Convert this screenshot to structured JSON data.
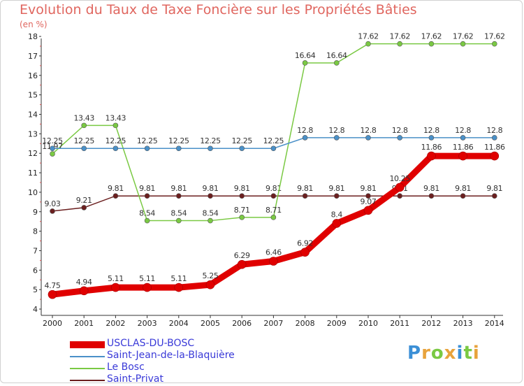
{
  "chart_data": {
    "type": "line",
    "title": "Evolution du Taux de Taxe Foncière sur les Propriétés Bâties",
    "ylabel": "(en %)",
    "xlabel": "",
    "x": [
      "2000",
      "2001",
      "2002",
      "2003",
      "2004",
      "2005",
      "2006",
      "2007",
      "2008",
      "2009",
      "2010",
      "2011",
      "2012",
      "2013",
      "2014"
    ],
    "ylim": [
      4,
      18
    ],
    "yticks": [
      "4",
      "5",
      "6",
      "7",
      "8",
      "9",
      "10",
      "11",
      "12",
      "13",
      "14",
      "15",
      "16",
      "17",
      "18"
    ],
    "grid": false,
    "series": [
      {
        "name": "Saint-Privat",
        "color": "#6b1f1f",
        "values": [
          9.03,
          9.21,
          9.81,
          9.81,
          9.81,
          9.81,
          9.81,
          9.81,
          9.81,
          9.81,
          9.81,
          9.81,
          9.81,
          9.81,
          9.81
        ],
        "labels": [
          "9.03",
          "9.21",
          "9.81",
          "9.81",
          "9.81",
          "9.81",
          "9.81",
          "9.81",
          "9.81",
          "9.81",
          "9.81",
          "9.81",
          "9.81",
          "9.81",
          "9.81"
        ]
      },
      {
        "name": "Le Bosc",
        "color": "#7ac943",
        "values": [
          11.97,
          13.43,
          13.43,
          8.54,
          8.54,
          8.54,
          8.71,
          8.71,
          16.64,
          16.64,
          17.62,
          17.62,
          17.62,
          17.62,
          17.62
        ],
        "labels": [
          "11.97",
          "13.43",
          "13.43",
          "8.54",
          "8.54",
          "8.54",
          "8.71",
          "8.71",
          "16.64",
          "16.64",
          "17.62",
          "17.62",
          "17.62",
          "17.62",
          "17.62"
        ]
      },
      {
        "name": "Saint-Jean-de-la-Blaquière",
        "color": "#4a90c8",
        "values": [
          12.25,
          12.25,
          12.25,
          12.25,
          12.25,
          12.25,
          12.25,
          12.25,
          12.8,
          12.8,
          12.8,
          12.8,
          12.8,
          12.8,
          12.8
        ],
        "labels": [
          "12.25",
          "12.25",
          "12.25",
          "12.25",
          "12.25",
          "12.25",
          "12.25",
          "12.25",
          "12.8",
          "12.8",
          "12.8",
          "12.8",
          "12.8",
          "12.8",
          "12.8"
        ]
      },
      {
        "name": "USCLAS-DU-BOSC",
        "color": "#e00000",
        "values": [
          4.75,
          4.94,
          5.11,
          5.11,
          5.11,
          5.25,
          6.29,
          6.46,
          6.92,
          8.4,
          9.07,
          10.25,
          11.86,
          11.86,
          11.86
        ],
        "labels": [
          "4.75",
          "4.94",
          "5.11",
          "5.11",
          "5.11",
          "5.25",
          "6.29",
          "6.46",
          "6.92",
          "8.4",
          "9.07",
          "10.25",
          "11.86",
          "11.86",
          "11.86"
        ]
      }
    ],
    "legend": {
      "position": "bottom-left",
      "items": [
        {
          "name": "USCLAS-DU-BOSC",
          "color": "#e00000"
        },
        {
          "name": "Saint-Jean-de-la-Blaquière",
          "color": "#4a90c8"
        },
        {
          "name": "Le Bosc",
          "color": "#7ac943"
        },
        {
          "name": "Saint-Privat",
          "color": "#6b1f1f"
        }
      ]
    }
  },
  "brand": {
    "letters": [
      "P",
      "r",
      "o",
      "x",
      "i",
      "t",
      "i"
    ],
    "colors": [
      "#3b8fd6",
      "#e8a33c",
      "#7ac943",
      "#e8a33c",
      "#3b8fd6",
      "#7ac943",
      "#e8a33c"
    ]
  }
}
